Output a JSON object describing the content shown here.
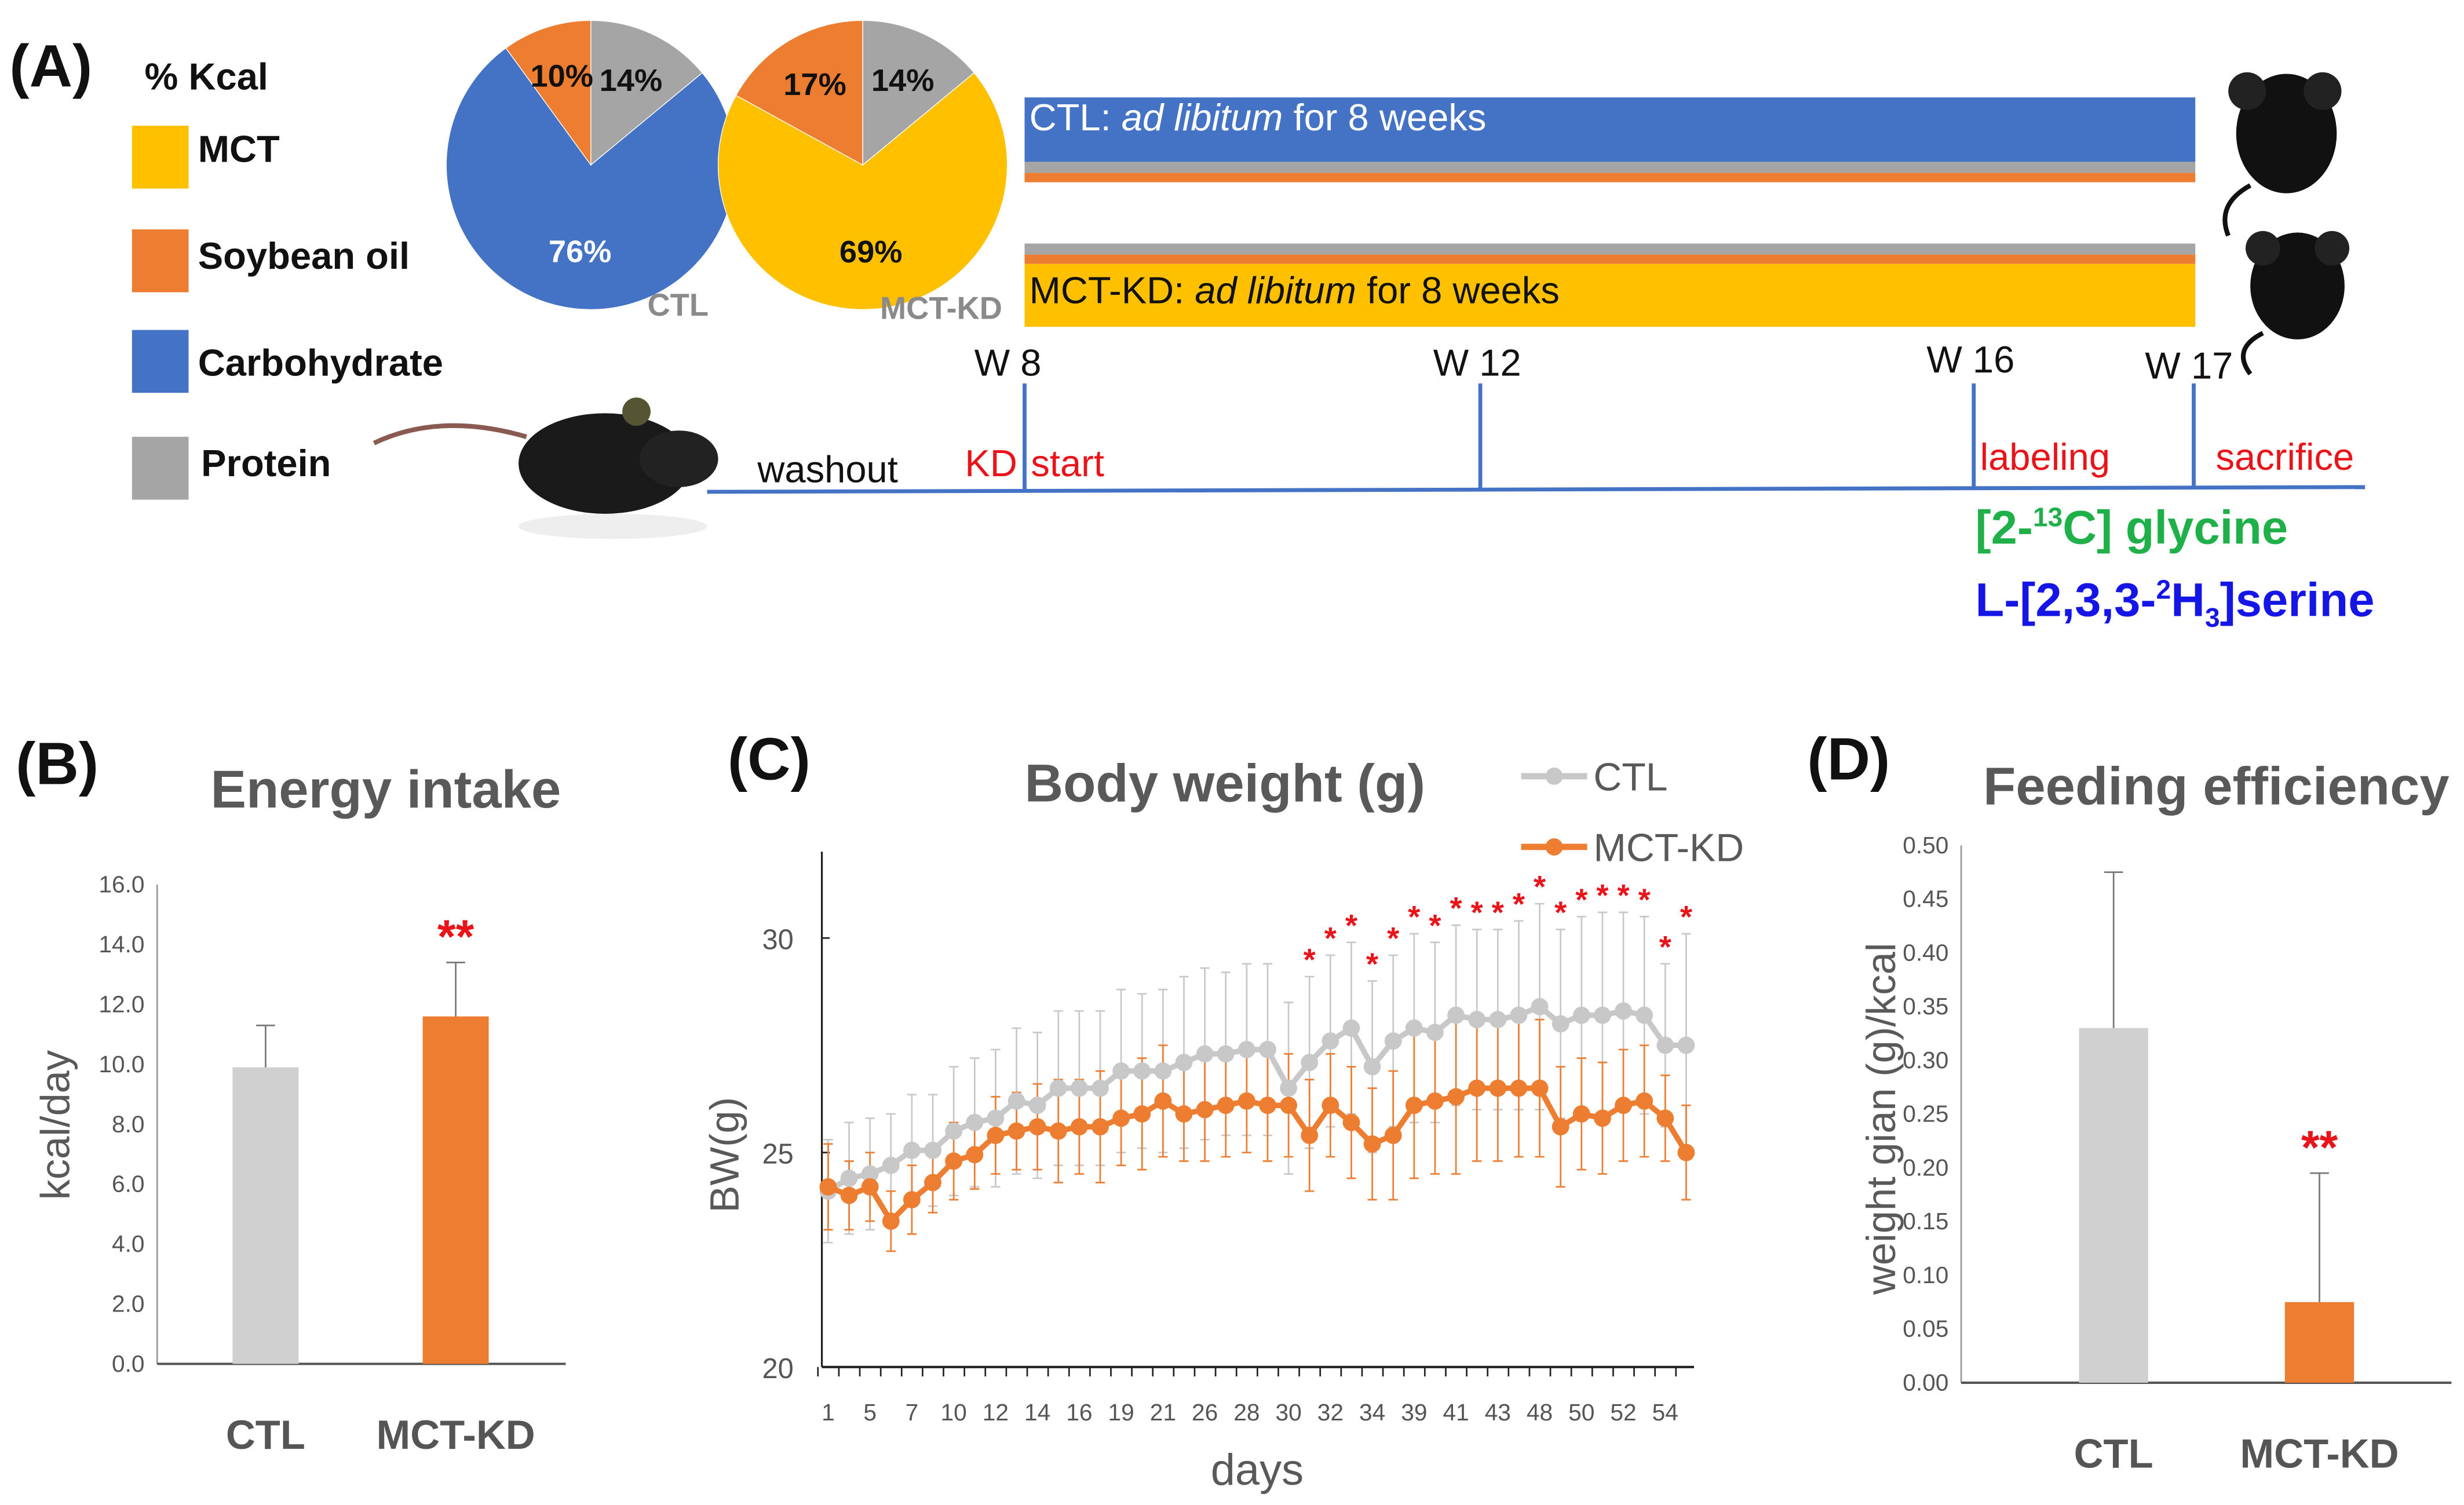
{
  "panelA": {
    "label": "(A)",
    "legend_title": "% Kcal",
    "legend": [
      {
        "name": "MCT",
        "color": "#ffc000"
      },
      {
        "name": "Soybean oil",
        "color": "#ed7d31"
      },
      {
        "name": "Carbohydrate",
        "color": "#4472c4"
      },
      {
        "name": "Protein",
        "color": "#a5a5a5"
      }
    ],
    "pies": [
      {
        "name": "CTL",
        "slices": [
          {
            "label": "14%",
            "value": 14,
            "color": "#a5a5a5"
          },
          {
            "label": "76%",
            "value": 76,
            "color": "#4472c4"
          },
          {
            "label": "10%",
            "value": 10,
            "color": "#ed7d31"
          }
        ]
      },
      {
        "name": "MCT-KD",
        "slices": [
          {
            "label": "14%",
            "value": 14,
            "color": "#a5a5a5"
          },
          {
            "label": "69%",
            "value": 69,
            "color": "#ffc000"
          },
          {
            "label": "17%",
            "value": 17,
            "color": "#ed7d31"
          }
        ]
      }
    ],
    "ctl_bar": {
      "prefix": "CTL: ",
      "italic": "ad libitum",
      "suffix": " for 8 weeks"
    },
    "kd_bar": {
      "prefix": "MCT-KD: ",
      "italic": "ad libitum",
      "suffix": " for 8 weeks"
    },
    "timeline": {
      "weeks": [
        "W 8",
        "W 12",
        "W 16",
        "W 17"
      ],
      "washout": "washout",
      "kd": "KD",
      "start": "start",
      "labeling": "labeling",
      "sacrifice": "sacrifice",
      "tracer1": {
        "pre": "[2-",
        "sup": "13",
        "post": "C] glycine"
      },
      "tracer2": {
        "pre": "L-[2,3,3-",
        "sup": "2",
        "mid": "H",
        "sub": "3",
        "post": "]serine"
      }
    }
  },
  "chart_data": [
    {
      "id": "B",
      "panel_label": "(B)",
      "type": "bar",
      "title": "Energy intake",
      "xlabel": "",
      "ylabel": "kcal/day",
      "categories": [
        "CTL",
        "MCT-KD"
      ],
      "values": [
        9.9,
        11.6
      ],
      "errors": [
        1.4,
        1.8
      ],
      "colors": [
        "#d0d0d0",
        "#ed7d31"
      ],
      "significance": [
        "",
        "**"
      ],
      "ylim": [
        0,
        16
      ],
      "yticks": [
        "0.0",
        "2.0",
        "4.0",
        "6.0",
        "8.0",
        "10.0",
        "12.0",
        "14.0",
        "16.0"
      ]
    },
    {
      "id": "C",
      "panel_label": "(C)",
      "type": "line",
      "title": "Body weight (g)",
      "xlabel": "days",
      "ylabel": "BW(g)",
      "ylim": [
        20,
        32
      ],
      "yticks": [
        "20",
        "25",
        "30"
      ],
      "xtick_labels": [
        "1",
        "",
        "5",
        "",
        "7",
        "",
        "10",
        "",
        "12",
        "",
        "14",
        "",
        "16",
        "",
        "19",
        "",
        "21",
        "",
        "26",
        "",
        "28",
        "",
        "30",
        "",
        "32",
        "",
        "34",
        "",
        "39",
        "",
        "41",
        "",
        "43",
        "",
        "48",
        "",
        "50",
        "",
        "52",
        "",
        "54",
        ""
      ],
      "legend": "top-right",
      "series": [
        {
          "name": "CTL",
          "color": "#c8c8c8",
          "values": [
            24.1,
            24.4,
            24.5,
            24.7,
            25.05,
            25.05,
            25.5,
            25.7,
            25.8,
            26.2,
            26.1,
            26.5,
            26.5,
            26.5,
            26.9,
            26.9,
            26.9,
            27.1,
            27.3,
            27.3,
            27.4,
            27.4,
            26.5,
            27.1,
            27.6,
            27.9,
            27.0,
            27.6,
            27.9,
            27.8,
            28.2,
            28.1,
            28.1,
            28.2,
            28.4,
            28.0,
            28.2,
            28.2,
            28.3,
            28.2,
            27.5,
            27.5
          ],
          "errors": [
            1.2,
            1.3,
            1.3,
            1.2,
            1.3,
            1.3,
            1.5,
            1.5,
            1.6,
            1.7,
            1.7,
            1.8,
            1.8,
            1.8,
            1.9,
            1.8,
            1.9,
            2.0,
            2.0,
            1.9,
            2.0,
            2.0,
            2.0,
            2.0,
            2.0,
            2.0,
            2.0,
            2.0,
            2.2,
            2.1,
            2.1,
            2.1,
            2.1,
            2.2,
            2.4,
            2.2,
            2.3,
            2.4,
            2.3,
            2.3,
            1.9,
            2.6
          ]
        },
        {
          "name": "MCT-KD",
          "color": "#ed7d31",
          "values": [
            24.2,
            24.0,
            24.2,
            23.4,
            23.9,
            24.3,
            24.8,
            24.95,
            25.4,
            25.5,
            25.6,
            25.5,
            25.6,
            25.6,
            25.8,
            25.9,
            26.2,
            25.9,
            26.0,
            26.1,
            26.2,
            26.1,
            26.1,
            25.4,
            26.1,
            25.7,
            25.2,
            25.4,
            26.1,
            26.2,
            26.3,
            26.5,
            26.5,
            26.5,
            26.5,
            25.6,
            25.9,
            25.8,
            26.1,
            26.2,
            25.8,
            25.0
          ],
          "errors": [
            1.0,
            0.8,
            0.8,
            0.7,
            0.8,
            0.7,
            0.9,
            0.8,
            0.9,
            0.9,
            1.0,
            1.2,
            1.1,
            1.3,
            1.1,
            1.3,
            1.3,
            1.1,
            1.2,
            1.2,
            1.2,
            1.3,
            1.2,
            1.3,
            1.2,
            1.3,
            1.3,
            1.5,
            1.7,
            1.7,
            1.8,
            1.7,
            1.7,
            1.6,
            1.6,
            1.4,
            1.3,
            1.3,
            1.3,
            1.3,
            1.0,
            1.1
          ]
        }
      ],
      "significant_indices": [
        23,
        24,
        25,
        26,
        27,
        28,
        29,
        30,
        31,
        32,
        33,
        34,
        35,
        36,
        37,
        38,
        39,
        40,
        41
      ],
      "significance_mark": "*"
    },
    {
      "id": "D",
      "panel_label": "(D)",
      "type": "bar",
      "title": "Feeding efficiency",
      "xlabel": "",
      "ylabel": "weight gian (g)/kcal",
      "categories": [
        "CTL",
        "MCT-KD"
      ],
      "values": [
        0.33,
        0.075
      ],
      "errors": [
        0.145,
        0.12
      ],
      "colors": [
        "#d0d0d0",
        "#ed7d31"
      ],
      "significance": [
        "",
        "**"
      ],
      "ylim": [
        0,
        0.5
      ],
      "yticks": [
        "0.00",
        "0.05",
        "0.10",
        "0.15",
        "0.20",
        "0.25",
        "0.30",
        "0.35",
        "0.40",
        "0.45",
        "0.50"
      ]
    }
  ]
}
